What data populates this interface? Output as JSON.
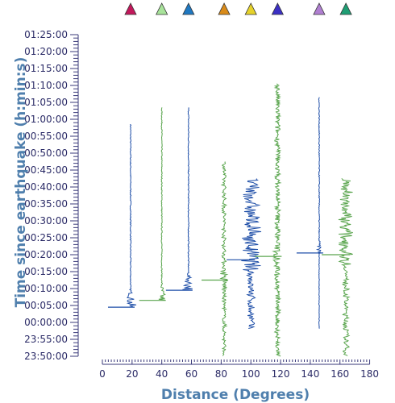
{
  "chart_data": {
    "type": "scatter",
    "xlabel": "Distance (Degrees)",
    "ylabel": "Time since earthquake (h:min:s)",
    "xlim": [
      0,
      180
    ],
    "x_ticks": [
      0,
      20,
      40,
      60,
      80,
      100,
      120,
      140,
      160,
      180
    ],
    "x_tick_labels": [
      "0",
      "20",
      "40",
      "60",
      "80",
      "100",
      "120",
      "140",
      "160",
      "180"
    ],
    "y_tick_labels": [
      "23:50:00",
      "23:55:00",
      "00:00:00",
      "00:05:00",
      "00:10:00",
      "00:15:00",
      "00:20:00",
      "00:25:00",
      "00:30:00",
      "00:35:00",
      "00:40:00",
      "00:45:00",
      "00:50:00",
      "00:55:00",
      "01:00:00",
      "01:05:00",
      "01:10:00",
      "01:15:00",
      "01:20:00",
      "01:25:00"
    ],
    "ylim_minutes_from_first_tick": [
      0,
      95
    ],
    "grid": false,
    "legend": "none",
    "stations": [
      {
        "distance": 19,
        "color": "#c2185b",
        "trace_color": "#1f4fa8",
        "start": 14.5,
        "end": 68.5,
        "arrival": 14.5,
        "shape": "onset",
        "amp": 8
      },
      {
        "distance": 40,
        "color": "#a8e39a",
        "trace_color": "#5aa54e",
        "start": 16.5,
        "end": 73.5,
        "arrival": 16.5,
        "shape": "onset",
        "amp": 6
      },
      {
        "distance": 58,
        "color": "#1f78c1",
        "trace_color": "#1f4fa8",
        "start": 19.5,
        "end": 73.5,
        "arrival": 19.5,
        "shape": "onset",
        "amp": 8
      },
      {
        "distance": 82,
        "color": "#d98b1a",
        "trace_color": "#5aa54e",
        "start": 0,
        "end": 57.5,
        "arrival": 22.5,
        "shape": "band",
        "amp": 3
      },
      {
        "distance": 100,
        "color": "#e6d22a",
        "trace_color": "#1f4fa8",
        "start": 8,
        "end": 52.5,
        "arrival": 28.5,
        "shape": "wide",
        "amp": 13
      },
      {
        "distance": 118,
        "color": "#3b2fc4",
        "trace_color": "#5aa54e",
        "start": 0,
        "end": 80.5,
        "arrival": 29.5,
        "shape": "band",
        "amp": 4
      },
      {
        "distance": 146,
        "color": "#b07fd1",
        "trace_color": "#1f4fa8",
        "start": 8,
        "end": 76.5,
        "arrival": 30.5,
        "shape": "onset",
        "amp": 3
      },
      {
        "distance": 164,
        "color": "#1f9e74",
        "trace_color": "#5aa54e",
        "start": 0,
        "end": 52.5,
        "arrival": 30,
        "shape": "wide",
        "amp": 10
      }
    ]
  }
}
